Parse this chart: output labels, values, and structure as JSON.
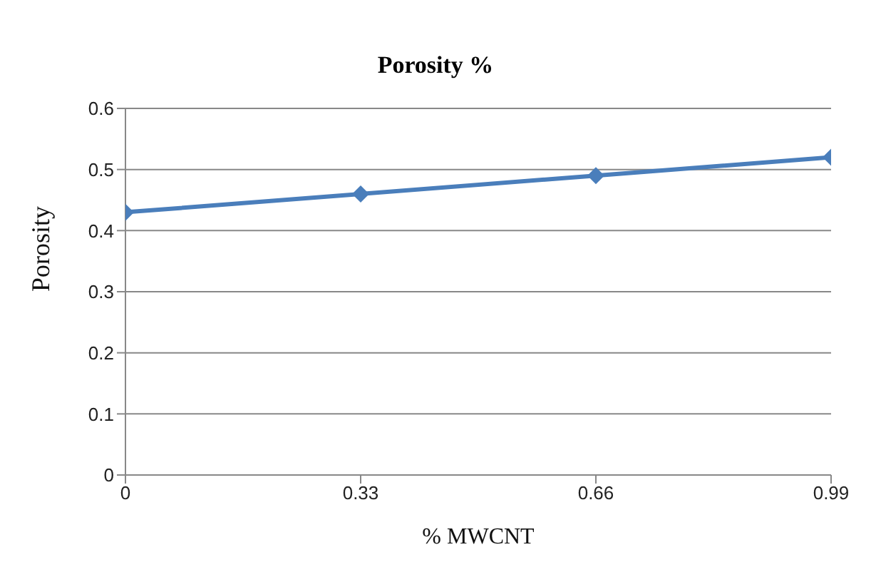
{
  "chart_data": {
    "type": "line",
    "title": "Porosity %",
    "xlabel": "% MWCNT",
    "ylabel": "Porosity",
    "x": [
      0,
      0.33,
      0.66,
      0.99
    ],
    "series": [
      {
        "color": "#4a7ebb",
        "values": [
          0.43,
          0.46,
          0.49,
          0.52
        ]
      }
    ],
    "xlim": [
      0,
      0.99
    ],
    "xticks": [
      0,
      0.33,
      0.66,
      0.99
    ],
    "ylim": [
      0,
      0.6
    ],
    "yticks": [
      0,
      0.1,
      0.2,
      0.3,
      0.4,
      0.5,
      0.6
    ],
    "grid": "y",
    "marker": "diamond",
    "line_style": "solid",
    "legend": false
  }
}
